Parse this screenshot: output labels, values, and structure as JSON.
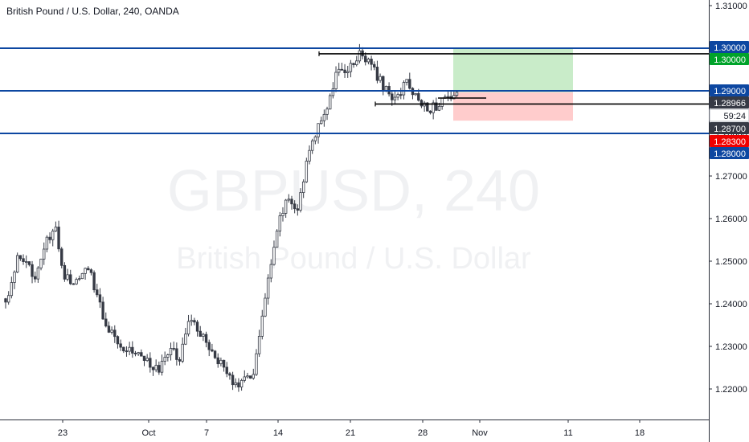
{
  "header": {
    "title": "British Pound / U.S. Dollar, 240, OANDA"
  },
  "watermark": {
    "symbol": "GBPUSD, 240",
    "description": "British Pound / U.S. Dollar"
  },
  "colors": {
    "up_candle": "#ffffff",
    "down_candle": "#363a45",
    "level_line": "#0d47a1",
    "price_label_blue": "#0d47a1",
    "target_label_green": "#00a32a",
    "stop_label_red": "#f00000",
    "target_zone": "#c9ecc9",
    "stop_zone": "#ffcccc",
    "last_price_label": "#363a45",
    "countdown_label_bg": "#ffffff"
  },
  "price_axis": {
    "ticks": [
      "1.31000",
      "1.30000",
      "1.29000",
      "1.28000",
      "1.27000",
      "1.26000",
      "1.25000",
      "1.24000",
      "1.23000",
      "1.22000"
    ],
    "labels": [
      {
        "text": "1.30000",
        "style": "blue"
      },
      {
        "text": "1.30000",
        "style": "green"
      },
      {
        "text": "1.29000",
        "style": "blue"
      },
      {
        "text": "1.28966",
        "style": "dark"
      },
      {
        "text": "59:24",
        "style": "light"
      },
      {
        "text": "1.28700",
        "style": "dark"
      },
      {
        "text": "1.28300",
        "style": "red"
      },
      {
        "text": "1.28000",
        "style": "blue"
      }
    ]
  },
  "time_axis": {
    "labels": [
      "23",
      "Oct",
      "7",
      "14",
      "21",
      "28",
      "Nov",
      "11",
      "18"
    ]
  },
  "chart_data": {
    "type": "candlestick",
    "symbol": "GBPUSD",
    "interval": "240",
    "ylim": [
      1.212,
      1.3125
    ],
    "horizontal_levels": [
      1.3,
      1.29,
      1.28
    ],
    "position": {
      "type": "long",
      "entry": 1.28966,
      "target": 1.3,
      "stop": 1.283
    },
    "drawn_lines": [
      {
        "price": 1.2987,
        "from": "Oct 18",
        "to": "chart end"
      },
      {
        "price": 1.2869,
        "from": "Oct 22",
        "to": "chart end"
      },
      {
        "price": 1.2883,
        "from": "Oct 29",
        "to": "Oct 31"
      }
    ],
    "current_price": 1.28966,
    "candle_countdown": "59:24",
    "anchors": [
      {
        "t": 0,
        "p": 1.24
      },
      {
        "t": 4,
        "p": 1.2505
      },
      {
        "t": 10,
        "p": 1.247
      },
      {
        "t": 14,
        "p": 1.2545
      },
      {
        "t": 17,
        "p": 1.257
      },
      {
        "t": 20,
        "p": 1.246
      },
      {
        "t": 25,
        "p": 1.245
      },
      {
        "t": 28,
        "p": 1.249
      },
      {
        "t": 34,
        "p": 1.235
      },
      {
        "t": 40,
        "p": 1.23
      },
      {
        "t": 46,
        "p": 1.228
      },
      {
        "t": 52,
        "p": 1.224
      },
      {
        "t": 56,
        "p": 1.23
      },
      {
        "t": 59,
        "p": 1.226
      },
      {
        "t": 62,
        "p": 1.237
      },
      {
        "t": 67,
        "p": 1.232
      },
      {
        "t": 72,
        "p": 1.227
      },
      {
        "t": 76,
        "p": 1.2225
      },
      {
        "t": 80,
        "p": 1.221
      },
      {
        "t": 84,
        "p": 1.224
      },
      {
        "t": 89,
        "p": 1.245
      },
      {
        "t": 93,
        "p": 1.26
      },
      {
        "t": 96,
        "p": 1.265
      },
      {
        "t": 99,
        "p": 1.262
      },
      {
        "t": 103,
        "p": 1.276
      },
      {
        "t": 107,
        "p": 1.284
      },
      {
        "t": 110,
        "p": 1.288
      },
      {
        "t": 113,
        "p": 1.296
      },
      {
        "t": 116,
        "p": 1.294
      },
      {
        "t": 120,
        "p": 1.299
      },
      {
        "t": 124,
        "p": 1.296
      },
      {
        "t": 128,
        "p": 1.291
      },
      {
        "t": 132,
        "p": 1.288
      },
      {
        "t": 136,
        "p": 1.292
      },
      {
        "t": 140,
        "p": 1.2875
      },
      {
        "t": 144,
        "p": 1.286
      },
      {
        "t": 149,
        "p": 1.2875
      },
      {
        "t": 153,
        "p": 1.2895
      }
    ]
  }
}
